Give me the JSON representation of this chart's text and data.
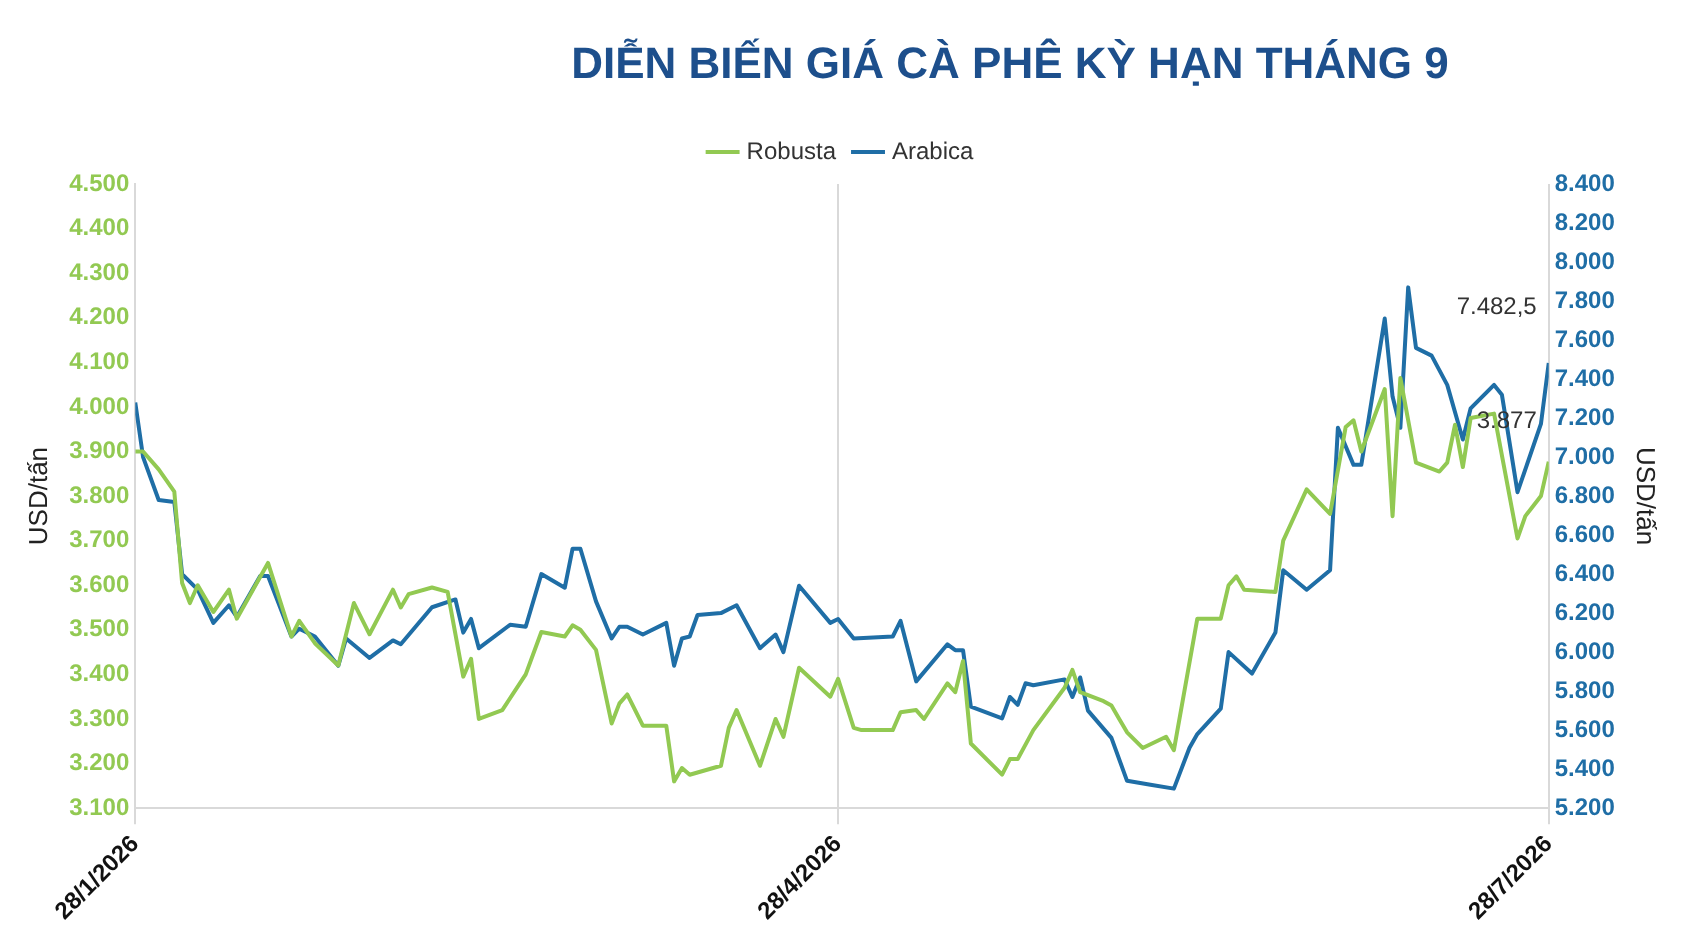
{
  "chart_data": {
    "type": "line",
    "title": "DIỄN BIẾN GIÁ CÀ PHÊ KỲ HẠN THÁNG 9",
    "ylabel": "USD/tấn",
    "y2label": "USD/tấn",
    "legend": "top",
    "grid": "x",
    "marker": "none",
    "line_style": "solid",
    "xlim": [
      "2026-01-28",
      "2026-07-28"
    ],
    "xticks": [
      {
        "value": "2026-01-28",
        "label": "28/1/2026"
      },
      {
        "value": "2026-04-28",
        "label": "28/4/2026"
      },
      {
        "value": "2026-07-28",
        "label": "28/7/2026"
      }
    ],
    "ylim": [
      3100,
      4500
    ],
    "yticks": [
      {
        "value": 3100,
        "label": "3.100"
      },
      {
        "value": 3200,
        "label": "3.200"
      },
      {
        "value": 3300,
        "label": "3.300"
      },
      {
        "value": 3400,
        "label": "3.400"
      },
      {
        "value": 3500,
        "label": "3.500"
      },
      {
        "value": 3600,
        "label": "3.600"
      },
      {
        "value": 3700,
        "label": "3.700"
      },
      {
        "value": 3800,
        "label": "3.800"
      },
      {
        "value": 3900,
        "label": "3.900"
      },
      {
        "value": 4000,
        "label": "4.000"
      },
      {
        "value": 4100,
        "label": "4.100"
      },
      {
        "value": 4200,
        "label": "4.200"
      },
      {
        "value": 4300,
        "label": "4.300"
      },
      {
        "value": 4400,
        "label": "4.400"
      },
      {
        "value": 4500,
        "label": "4.500"
      }
    ],
    "y2lim": [
      5200,
      8400
    ],
    "y2ticks": [
      {
        "value": 5200,
        "label": "5.200"
      },
      {
        "value": 5400,
        "label": "5.400"
      },
      {
        "value": 5600,
        "label": "5.600"
      },
      {
        "value": 5800,
        "label": "5.800"
      },
      {
        "value": 6000,
        "label": "6.000"
      },
      {
        "value": 6200,
        "label": "6.200"
      },
      {
        "value": 6400,
        "label": "6.400"
      },
      {
        "value": 6600,
        "label": "6.600"
      },
      {
        "value": 6800,
        "label": "6.800"
      },
      {
        "value": 7000,
        "label": "7.000"
      },
      {
        "value": 7200,
        "label": "7.200"
      },
      {
        "value": 7400,
        "label": "7.400"
      },
      {
        "value": 7600,
        "label": "7.600"
      },
      {
        "value": 7800,
        "label": "7.800"
      },
      {
        "value": 8000,
        "label": "8.000"
      },
      {
        "value": 8200,
        "label": "8.200"
      },
      {
        "value": 8400,
        "label": "8.400"
      }
    ],
    "series": [
      {
        "name": "Robusta",
        "color": "#92c952",
        "x": [
          "2026-01-28",
          "2026-01-29",
          "2026-01-31",
          "2026-02-02",
          "2026-02-03",
          "2026-02-04",
          "2026-02-05",
          "2026-02-07",
          "2026-02-09",
          "2026-02-10",
          "2026-02-14",
          "2026-02-17",
          "2026-02-18",
          "2026-02-20",
          "2026-02-23",
          "2026-02-25",
          "2026-02-27",
          "2026-03-02",
          "2026-03-03",
          "2026-03-04",
          "2026-03-07",
          "2026-03-09",
          "2026-03-11",
          "2026-03-12",
          "2026-03-13",
          "2026-03-16",
          "2026-03-19",
          "2026-03-21",
          "2026-03-24",
          "2026-03-25",
          "2026-03-26",
          "2026-03-28",
          "2026-03-30",
          "2026-03-31",
          "2026-04-01",
          "2026-04-03",
          "2026-04-06",
          "2026-04-07",
          "2026-04-08",
          "2026-04-09",
          "2026-04-13",
          "2026-04-14",
          "2026-04-15",
          "2026-04-18",
          "2026-04-20",
          "2026-04-21",
          "2026-04-23",
          "2026-04-27",
          "2026-04-28",
          "2026-04-30",
          "2026-05-01",
          "2026-05-05",
          "2026-05-06",
          "2026-05-08",
          "2026-05-09",
          "2026-05-12",
          "2026-05-13",
          "2026-05-14",
          "2026-05-15",
          "2026-05-19",
          "2026-05-20",
          "2026-05-21",
          "2026-05-23",
          "2026-05-27",
          "2026-05-28",
          "2026-05-29",
          "2026-06-01",
          "2026-06-02",
          "2026-06-03",
          "2026-06-04",
          "2026-06-06",
          "2026-06-09",
          "2026-06-10",
          "2026-06-13",
          "2026-06-16",
          "2026-06-17",
          "2026-06-18",
          "2026-06-19",
          "2026-06-23",
          "2026-06-24",
          "2026-06-27",
          "2026-06-30",
          "2026-07-02",
          "2026-07-03",
          "2026-07-04",
          "2026-07-07",
          "2026-07-08",
          "2026-07-09",
          "2026-07-11",
          "2026-07-14",
          "2026-07-15",
          "2026-07-16",
          "2026-07-17",
          "2026-07-18",
          "2026-07-21",
          "2026-07-24",
          "2026-07-25",
          "2026-07-27",
          "2026-07-28"
        ],
        "values": [
          3900,
          3900,
          3860,
          3810,
          3605,
          3560,
          3600,
          3540,
          3590,
          3525,
          3650,
          3485,
          3520,
          3470,
          3420,
          3560,
          3490,
          3590,
          3550,
          3580,
          3595,
          3585,
          3395,
          3435,
          3300,
          3320,
          3400,
          3495,
          3485,
          3510,
          3500,
          3455,
          3290,
          3335,
          3355,
          3285,
          3285,
          3160,
          3190,
          3175,
          3195,
          3280,
          3320,
          3195,
          3300,
          3260,
          3415,
          3350,
          3390,
          3280,
          3275,
          3275,
          3315,
          3320,
          3300,
          3380,
          3360,
          3430,
          3245,
          3175,
          3210,
          3210,
          3275,
          3370,
          3410,
          3360,
          3340,
          3330,
          3300,
          3270,
          3235,
          3260,
          3230,
          3525,
          3525,
          3600,
          3620,
          3590,
          3585,
          3700,
          3815,
          3760,
          3955,
          3970,
          3900,
          4040,
          3755,
          4065,
          3875,
          3855,
          3875,
          3960,
          3865,
          3975,
          3985,
          3705,
          3755,
          3800,
          3877
        ],
        "value_labels": [
          null,
          null,
          null,
          null,
          null,
          null,
          null,
          null,
          null,
          null,
          null,
          null,
          null,
          null,
          null,
          null,
          null,
          null,
          null,
          null,
          null,
          null,
          null,
          null,
          null,
          null,
          null,
          null,
          null,
          null,
          null,
          null,
          null,
          null,
          null,
          null,
          null,
          null,
          null,
          null,
          null,
          null,
          null,
          null,
          null,
          null,
          null,
          null,
          null,
          null,
          null,
          null,
          null,
          null,
          null,
          null,
          null,
          null,
          null,
          null,
          null,
          null,
          null,
          null,
          null,
          null,
          null,
          null,
          null,
          null,
          null,
          null,
          null,
          null,
          null,
          null,
          null,
          null,
          null,
          null,
          null,
          null,
          null,
          null,
          null,
          null,
          null,
          null,
          null,
          null,
          null,
          null,
          null,
          null,
          null,
          null,
          null,
          null,
          "3.877"
        ]
      },
      {
        "name": "Arabica",
        "color": "#1f6ea6",
        "axis": "y2",
        "x": [
          "2026-01-28",
          "2026-01-29",
          "2026-01-31",
          "2026-02-02",
          "2026-02-03",
          "2026-02-05",
          "2026-02-07",
          "2026-02-09",
          "2026-02-10",
          "2026-02-13",
          "2026-02-14",
          "2026-02-17",
          "2026-02-18",
          "2026-02-20",
          "2026-02-23",
          "2026-02-24",
          "2026-02-27",
          "2026-03-02",
          "2026-03-03",
          "2026-03-07",
          "2026-03-10",
          "2026-03-11",
          "2026-03-12",
          "2026-03-13",
          "2026-03-17",
          "2026-03-19",
          "2026-03-21",
          "2026-03-24",
          "2026-03-25",
          "2026-03-26",
          "2026-03-28",
          "2026-03-30",
          "2026-03-31",
          "2026-04-01",
          "2026-04-03",
          "2026-04-06",
          "2026-04-07",
          "2026-04-08",
          "2026-04-09",
          "2026-04-10",
          "2026-04-13",
          "2026-04-15",
          "2026-04-18",
          "2026-04-20",
          "2026-04-21",
          "2026-04-23",
          "2026-04-27",
          "2026-04-28",
          "2026-04-30",
          "2026-05-05",
          "2026-05-06",
          "2026-05-08",
          "2026-05-12",
          "2026-05-13",
          "2026-05-14",
          "2026-05-15",
          "2026-05-19",
          "2026-05-20",
          "2026-05-21",
          "2026-05-22",
          "2026-05-23",
          "2026-05-27",
          "2026-05-28",
          "2026-05-29",
          "2026-05-30",
          "2026-06-02",
          "2026-06-04",
          "2026-06-07",
          "2026-06-10",
          "2026-06-12",
          "2026-06-13",
          "2026-06-16",
          "2026-06-17",
          "2026-06-20",
          "2026-06-23",
          "2026-06-24",
          "2026-06-27",
          "2026-06-30",
          "2026-07-01",
          "2026-07-03",
          "2026-07-04",
          "2026-07-07",
          "2026-07-08",
          "2026-07-09",
          "2026-07-10",
          "2026-07-11",
          "2026-07-13",
          "2026-07-15",
          "2026-07-17",
          "2026-07-18",
          "2026-07-21",
          "2026-07-22",
          "2026-07-24",
          "2026-07-27",
          "2026-07-28"
        ],
        "values": [
          7280,
          7000,
          6780,
          6770,
          6400,
          6320,
          6150,
          6240,
          6180,
          6390,
          6390,
          6080,
          6120,
          6080,
          5930,
          6070,
          5970,
          6060,
          6040,
          6230,
          6270,
          6100,
          6170,
          6020,
          6140,
          6130,
          6400,
          6330,
          6530,
          6530,
          6260,
          6070,
          6130,
          6130,
          6090,
          6150,
          5930,
          6070,
          6080,
          6190,
          6200,
          6240,
          6020,
          6090,
          6000,
          6340,
          6150,
          6170,
          6070,
          6080,
          6160,
          5850,
          6040,
          6010,
          6010,
          5720,
          5660,
          5770,
          5730,
          5840,
          5830,
          5860,
          5770,
          5870,
          5700,
          5560,
          5340,
          5320,
          5300,
          5510,
          5580,
          5710,
          6000,
          5890,
          6100,
          6420,
          6320,
          6420,
          7150,
          6960,
          6960,
          7710,
          7310,
          7150,
          7870,
          7560,
          7520,
          7370,
          7090,
          7250,
          7370,
          7320,
          6820,
          7170,
          7482.5
        ],
        "value_labels": [
          null,
          null,
          null,
          null,
          null,
          null,
          null,
          null,
          null,
          null,
          null,
          null,
          null,
          null,
          null,
          null,
          null,
          null,
          null,
          null,
          null,
          null,
          null,
          null,
          null,
          null,
          null,
          null,
          null,
          null,
          null,
          null,
          null,
          null,
          null,
          null,
          null,
          null,
          null,
          null,
          null,
          null,
          null,
          null,
          null,
          null,
          null,
          null,
          null,
          null,
          null,
          null,
          null,
          null,
          null,
          null,
          null,
          null,
          null,
          null,
          null,
          null,
          null,
          null,
          null,
          null,
          null,
          null,
          null,
          null,
          null,
          null,
          null,
          null,
          null,
          null,
          null,
          null,
          null,
          null,
          null,
          null,
          null,
          null,
          null,
          null,
          null,
          null,
          null,
          null,
          null,
          null,
          null,
          null,
          "7.482,5"
        ]
      }
    ]
  }
}
